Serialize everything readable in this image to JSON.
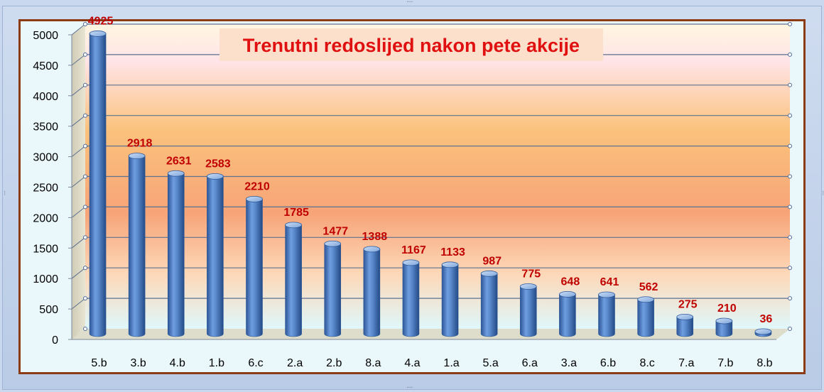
{
  "chart_data": {
    "type": "bar",
    "title": "Trenutni redoslijed nakon pete akcije",
    "xlabel": "",
    "ylabel": "",
    "categories": [
      "5.b",
      "3.b",
      "4.b",
      "1.b",
      "6.c",
      "2.a",
      "2.b",
      "8.a",
      "4.a",
      "1.a",
      "5.a",
      "6.a",
      "3.a",
      "6.b",
      "8.c",
      "7.a",
      "7.b",
      "8.b"
    ],
    "values": [
      4925,
      2918,
      2631,
      2583,
      2210,
      1785,
      1477,
      1388,
      1167,
      1133,
      987,
      775,
      648,
      641,
      562,
      275,
      210,
      36
    ],
    "ylim": [
      0,
      5000
    ],
    "yticks": [
      "0",
      "500",
      "1000",
      "1500",
      "2000",
      "2500",
      "3000",
      "3500",
      "4000",
      "4500",
      "5000"
    ],
    "grid": true,
    "legend": "none",
    "bar_shape": "cylinder",
    "colors": {
      "bar": "#4f81bd",
      "bar_dark": "#2e5a9a",
      "bar_light": "#8fb4e6",
      "data_label": "#c00000",
      "title_text": "#e01010",
      "title_bg": "#fde0cc",
      "frame_border": "#8b3c14",
      "gridline": "#5d7190"
    }
  }
}
